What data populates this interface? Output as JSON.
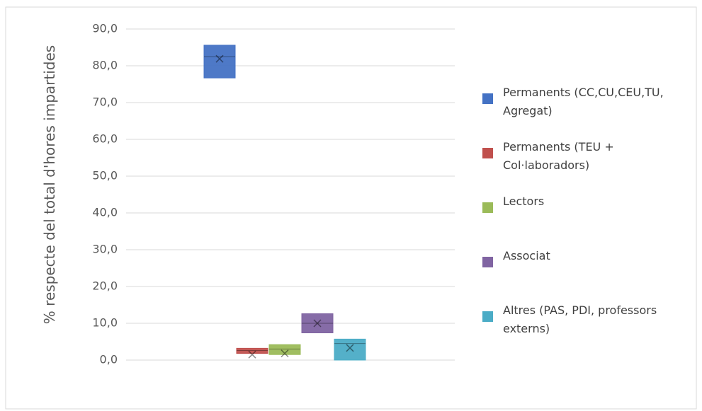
{
  "chart_data": {
    "type": "box",
    "y_label": "% respecte del total d'hores impartides",
    "ylim": [
      0,
      90
    ],
    "yticks": [
      {
        "value": 0,
        "label": "0,0"
      },
      {
        "value": 10,
        "label": "10,0"
      },
      {
        "value": 20,
        "label": "20,0"
      },
      {
        "value": 30,
        "label": "30,0"
      },
      {
        "value": 40,
        "label": "40,0"
      },
      {
        "value": 50,
        "label": "50,0"
      },
      {
        "value": 60,
        "label": "60,0"
      },
      {
        "value": 70,
        "label": "70,0"
      },
      {
        "value": 80,
        "label": "80,0"
      },
      {
        "value": 90,
        "label": "90,0"
      }
    ],
    "grid": true,
    "legend": "right",
    "series": [
      {
        "name": "Permanents (CC,CU,CEU,TU, Agregat)",
        "color": "#4472c4",
        "q1": 76.7,
        "median": 82.5,
        "q3": 85.6,
        "mean": 81.9
      },
      {
        "name": "Permanents (TEU + Col·laboradors)",
        "color": "#c0504d",
        "q1": 1.8,
        "median": 2.6,
        "q3": 3.2,
        "mean": 1.5
      },
      {
        "name": "Lectors",
        "color": "#9bbb59",
        "q1": 1.5,
        "median": 3.0,
        "q3": 4.2,
        "mean": 1.8
      },
      {
        "name": "Associat",
        "color": "#8064a2",
        "q1": 7.4,
        "median": 10.0,
        "q3": 12.6,
        "mean": 10.0
      },
      {
        "name": "Altres (PAS, PDI, professors externs)",
        "color": "#4bacc6",
        "q1": 0.0,
        "median": 4.5,
        "q3": 5.7,
        "mean": 3.3
      }
    ]
  }
}
